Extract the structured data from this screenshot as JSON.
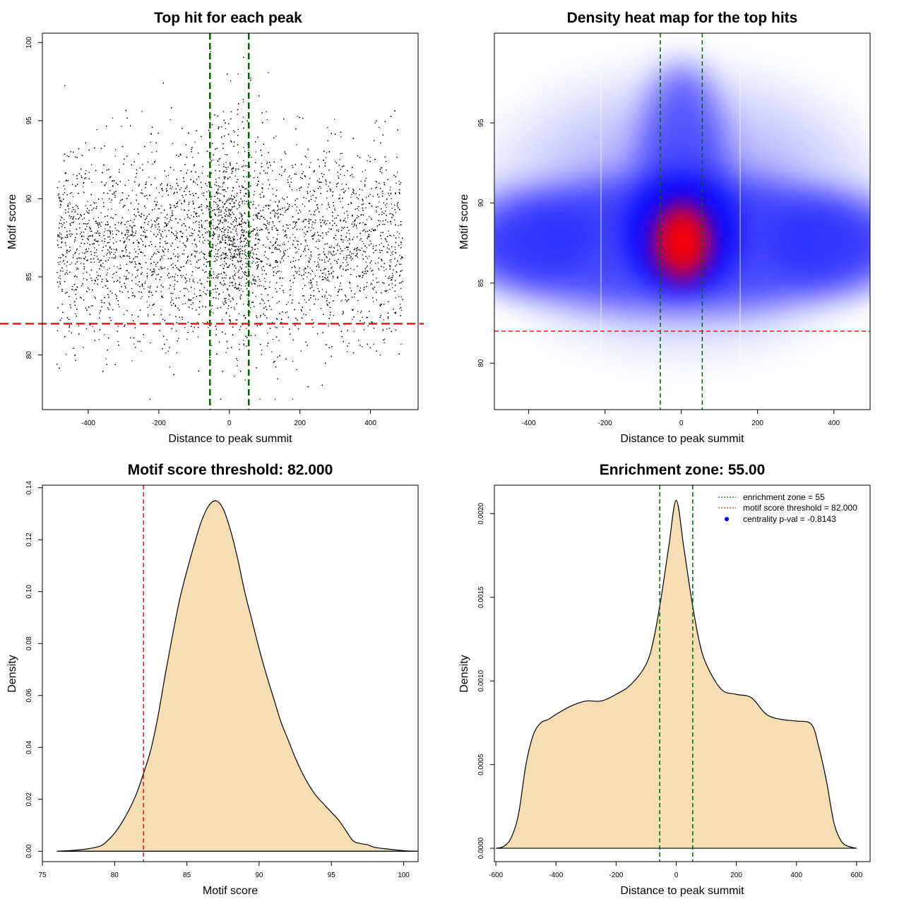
{
  "figure": {
    "colors": {
      "axis": "#000000",
      "green_line": "#006400",
      "red_line": "#e31a1c",
      "fill": "#f5deb3",
      "blue": "#0000ff",
      "red": "#ff0000",
      "point": "#000000"
    }
  },
  "chart_data": [
    {
      "id": "scatter",
      "type": "scatter",
      "title": "Top hit for each peak",
      "xlabel": "Distance to peak summit",
      "ylabel": "Motif score",
      "xlim": [
        -530,
        535
      ],
      "ylim": [
        76.5,
        100.6
      ],
      "xticks": [
        -400,
        -200,
        0,
        200,
        400
      ],
      "xtick_labels": [
        "-400",
        "-200",
        "0",
        "200",
        "400"
      ],
      "yticks": [
        80,
        85,
        90,
        95,
        100
      ],
      "ytick_labels": [
        "80",
        "85",
        "90",
        "95",
        "100"
      ],
      "vlines": [
        -55,
        55
      ],
      "hline": 82,
      "n_points": 9000,
      "x_range": [
        -490,
        490
      ],
      "score_mean": 87.2,
      "score_sd": 3.1
    },
    {
      "id": "heatmap",
      "type": "heatmap",
      "title": "Density heat map for the top hits",
      "xlabel": "Distance to peak summit",
      "ylabel": "Motif score",
      "xlim": [
        -490,
        495
      ],
      "ylim": [
        77.1,
        100.6
      ],
      "xticks": [
        -400,
        -200,
        0,
        200,
        400
      ],
      "xtick_labels": [
        "-400",
        "-200",
        "0",
        "200",
        "400"
      ],
      "yticks": [
        80,
        85,
        90,
        95
      ],
      "ytick_labels": [
        "80",
        "85",
        "90",
        "95"
      ],
      "vlines": [
        -55,
        55
      ],
      "hline": 82,
      "hotspot": {
        "x": 0,
        "y": 87.2
      }
    },
    {
      "id": "score_density",
      "type": "area",
      "title": "Motif score threshold: 82.000",
      "xlabel": "Motif score",
      "ylabel": "Density",
      "xlim": [
        75,
        101
      ],
      "ylim": [
        -0.004,
        0.141
      ],
      "xticks": [
        75,
        80,
        85,
        90,
        95,
        100
      ],
      "xtick_labels": [
        "75",
        "80",
        "85",
        "90",
        "95",
        "100"
      ],
      "yticks": [
        0,
        0.02,
        0.04,
        0.06,
        0.08,
        0.1,
        0.12,
        0.14
      ],
      "ytick_labels": [
        "0.00",
        "0.02",
        "0.04",
        "0.06",
        "0.08",
        "0.10",
        "0.12",
        "0.14"
      ],
      "vlines": [
        82
      ],
      "x": [
        76,
        77,
        78,
        79,
        79.5,
        80,
        80.5,
        81,
        81.5,
        82,
        82.5,
        83,
        83.5,
        84,
        84.5,
        85,
        85.5,
        86,
        86.5,
        87,
        87.5,
        88,
        88.5,
        89,
        89.5,
        90,
        90.5,
        91,
        91.5,
        92,
        92.5,
        93,
        93.5,
        94,
        94.5,
        95,
        95.5,
        96,
        96.5,
        97,
        97.5,
        98,
        99,
        100,
        101
      ],
      "y": [
        0,
        0.0003,
        0.0008,
        0.002,
        0.004,
        0.007,
        0.011,
        0.016,
        0.022,
        0.03,
        0.039,
        0.052,
        0.068,
        0.083,
        0.097,
        0.108,
        0.118,
        0.127,
        0.133,
        0.135,
        0.132,
        0.124,
        0.113,
        0.1,
        0.089,
        0.078,
        0.068,
        0.059,
        0.05,
        0.043,
        0.036,
        0.03,
        0.025,
        0.021,
        0.018,
        0.015,
        0.012,
        0.008,
        0.004,
        0.003,
        0.0025,
        0.0015,
        0.0008,
        0.0002,
        0
      ]
    },
    {
      "id": "distance_density",
      "type": "area",
      "title": "Enrichment zone: 55.00",
      "xlabel": "Distance to peak summit",
      "ylabel": "Density",
      "xlim": [
        -605,
        645
      ],
      "ylim": [
        -8e-05,
        0.00217
      ],
      "xticks": [
        -600,
        -400,
        -200,
        0,
        200,
        400,
        600
      ],
      "xtick_labels": [
        "-600",
        "-400",
        "-200",
        "0",
        "200",
        "400",
        "600"
      ],
      "yticks": [
        0,
        0.0005,
        0.001,
        0.0015,
        0.002
      ],
      "ytick_labels": [
        "0.0000",
        "0.0005",
        "0.0010",
        "0.0015",
        "0.0020"
      ],
      "vlines": [
        -55,
        55
      ],
      "x": [
        -600,
        -575,
        -550,
        -525,
        -500,
        -475,
        -450,
        -425,
        -400,
        -350,
        -300,
        -250,
        -200,
        -150,
        -100,
        -75,
        -50,
        -25,
        0,
        25,
        50,
        75,
        100,
        150,
        200,
        250,
        300,
        350,
        400,
        450,
        475,
        500,
        525,
        550,
        575,
        600
      ],
      "y": [
        0,
        1e-05,
        6e-05,
        0.0002,
        0.0005,
        0.00068,
        0.00075,
        0.00077,
        0.0008,
        0.00085,
        0.00088,
        0.00088,
        0.00092,
        0.00098,
        0.0011,
        0.00125,
        0.0015,
        0.0018,
        0.00208,
        0.0018,
        0.0015,
        0.00125,
        0.0011,
        0.00095,
        0.00092,
        0.0009,
        0.0008,
        0.00077,
        0.00076,
        0.00074,
        0.0006,
        0.0004,
        0.00015,
        4e-05,
        1e-05,
        0
      ],
      "legend": [
        {
          "label": "enrichment zone = 55",
          "style": "dotted",
          "color": "#006400"
        },
        {
          "label": "motif score threshold = 82.000",
          "style": "dotted",
          "color": "#e31a1c"
        },
        {
          "label": "centrality p-val = -0.8143",
          "style": "point",
          "color": "#0000ff"
        }
      ],
      "legend_position": "top-right"
    }
  ]
}
